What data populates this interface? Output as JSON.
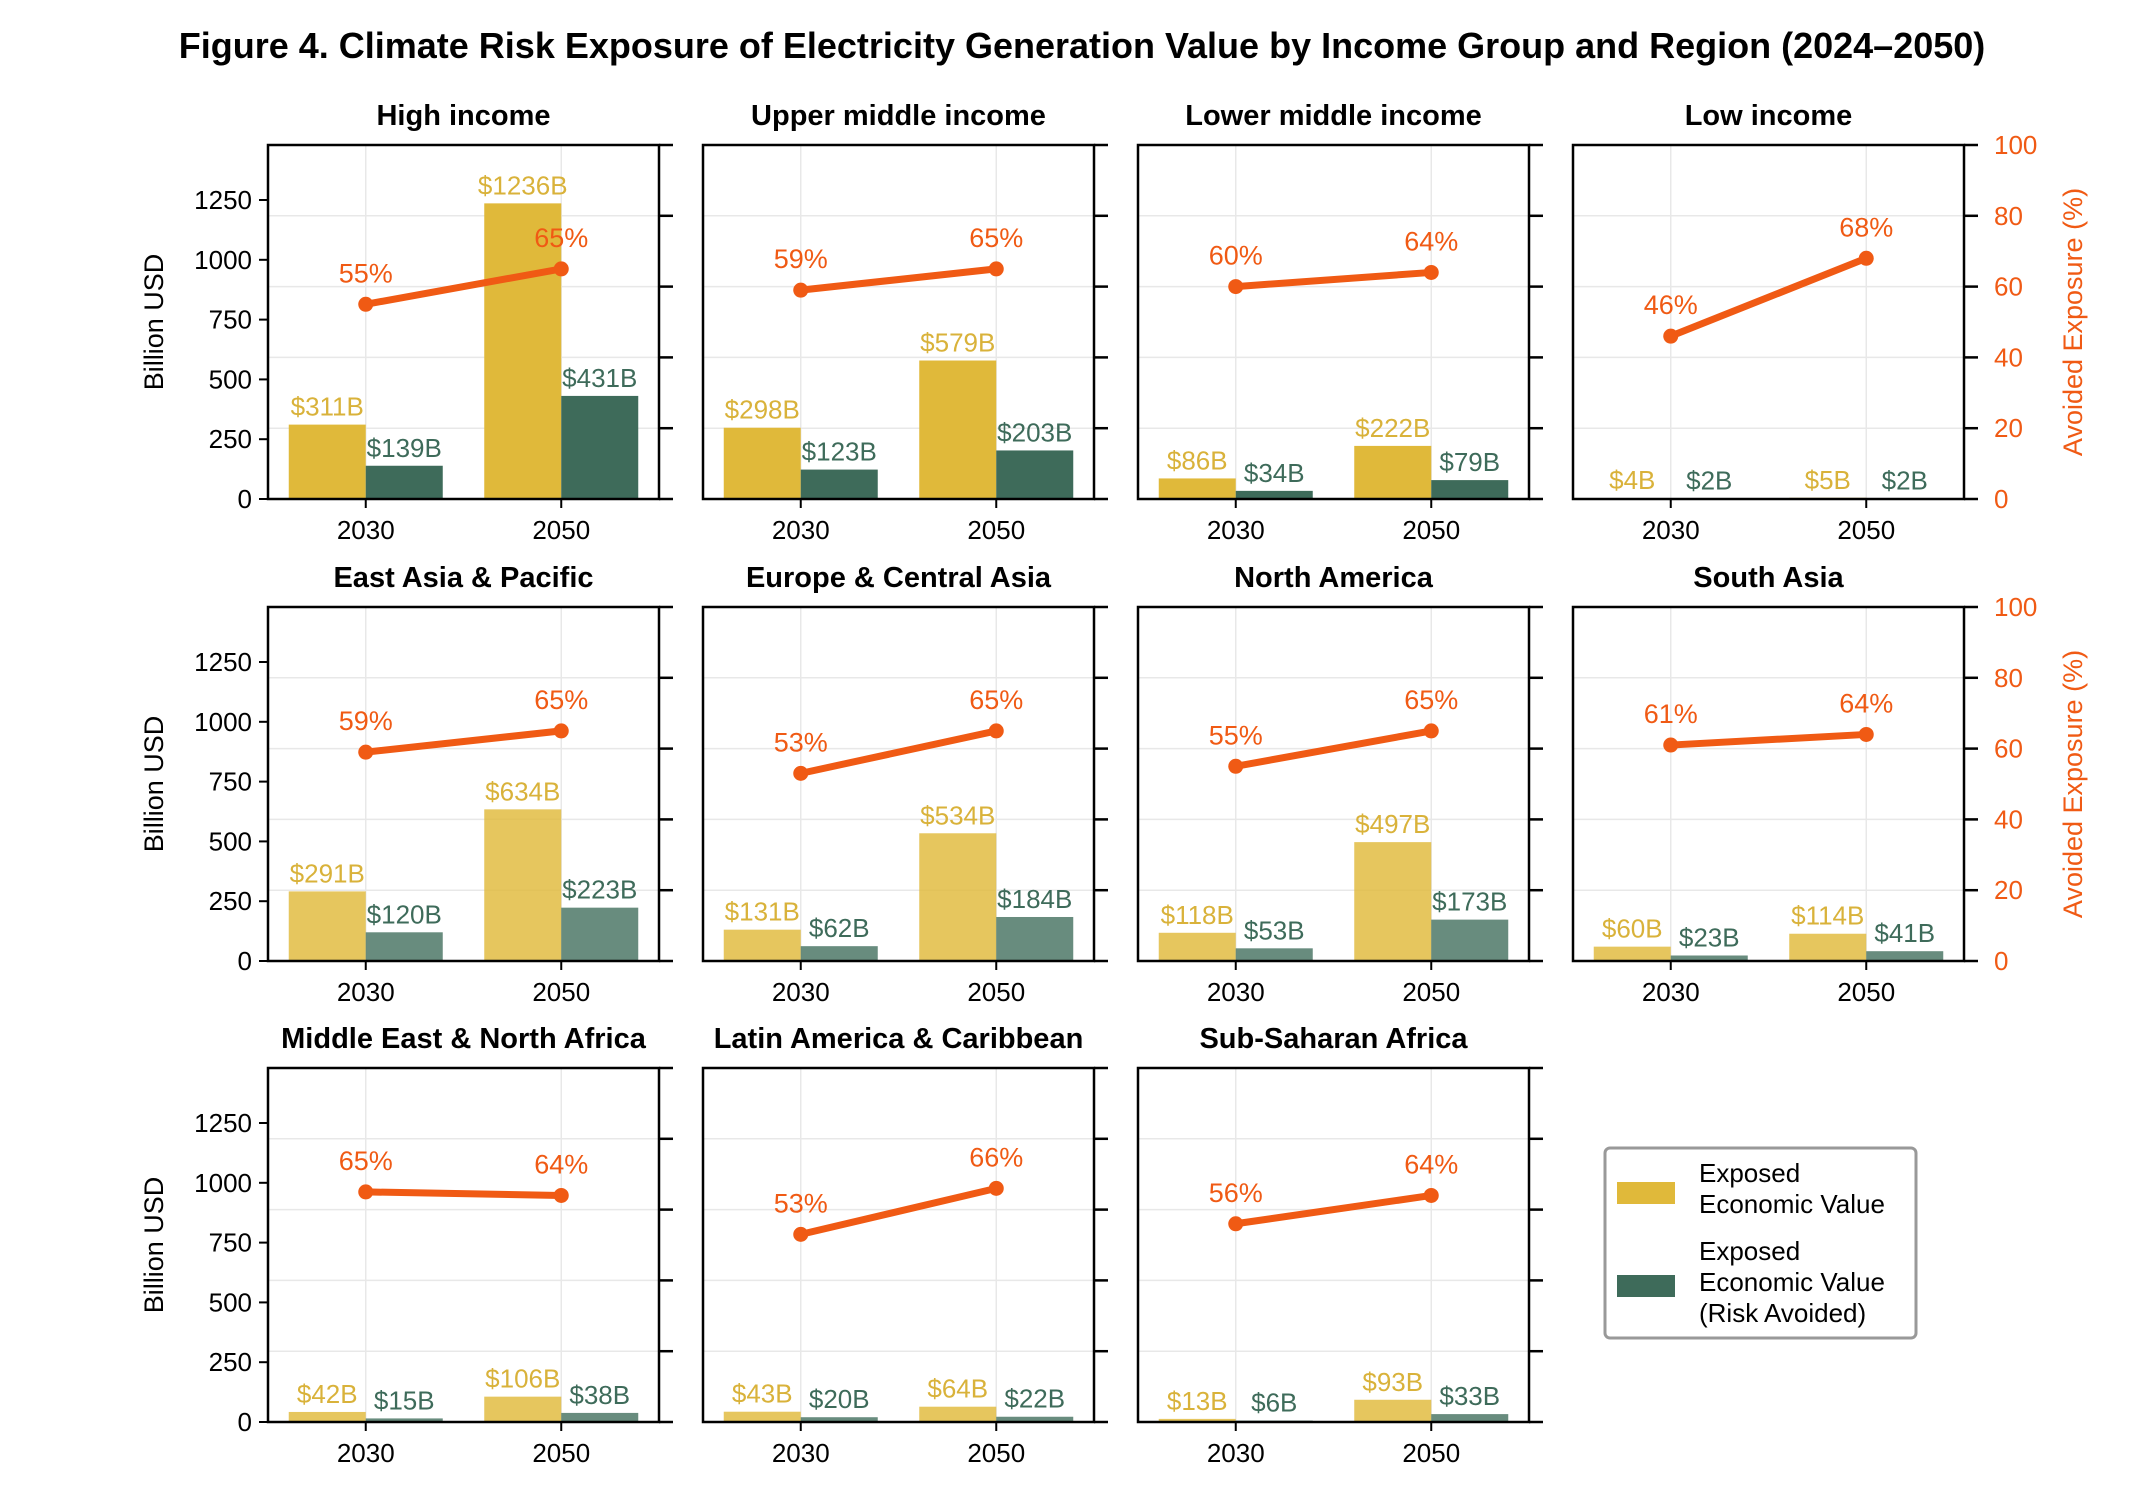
{
  "title": "Figure 4. Climate Risk Exposure of Electricity Generation Value by Income Group and Region (2024–2050)",
  "colors": {
    "exposed": "#E0B93A",
    "avoided": "#3E6B5A",
    "line": "#F05A14",
    "exposed_label": "#D9B23A",
    "avoided_label": "#3E6B5A",
    "axis": "#000000",
    "grid": "#E8E8E8"
  },
  "axis_labels": {
    "left": "Billion USD",
    "right": "Avoided Exposure (%)"
  },
  "legend": {
    "exposed": "Exposed\nEconomic Value",
    "avoided": "Exposed\nEconomic Value\n(Risk Avoided)"
  },
  "chart_data": {
    "type": "bar",
    "years": [
      "2030",
      "2050"
    ],
    "left_ylim": [
      0,
      1480
    ],
    "left_ticks": [
      0,
      250,
      500,
      750,
      1000,
      1250
    ],
    "right_ylim": [
      0,
      100
    ],
    "right_ticks": [
      0,
      20,
      40,
      60,
      80,
      100
    ],
    "panels": [
      {
        "title": "High income",
        "exposed": [
          311,
          1236
        ],
        "avoided": [
          139,
          431
        ],
        "pct": [
          55,
          65
        ],
        "exposed_labels": [
          "$311B",
          "$1236B"
        ],
        "avoided_labels": [
          "$139B",
          "$431B"
        ],
        "pct_labels": [
          "55%",
          "65%"
        ]
      },
      {
        "title": "Upper middle income",
        "exposed": [
          298,
          579
        ],
        "avoided": [
          123,
          203
        ],
        "pct": [
          59,
          65
        ],
        "exposed_labels": [
          "$298B",
          "$579B"
        ],
        "avoided_labels": [
          "$123B",
          "$203B"
        ],
        "pct_labels": [
          "59%",
          "65%"
        ]
      },
      {
        "title": "Lower middle income",
        "exposed": [
          86,
          222
        ],
        "avoided": [
          34,
          79
        ],
        "pct": [
          60,
          64
        ],
        "exposed_labels": [
          "$86B",
          "$222B"
        ],
        "avoided_labels": [
          "$34B",
          "$79B"
        ],
        "pct_labels": [
          "60%",
          "64%"
        ]
      },
      {
        "title": "Low income",
        "exposed": [
          4,
          5
        ],
        "avoided": [
          2,
          2
        ],
        "pct": [
          46,
          68
        ],
        "exposed_labels": [
          "$4B",
          "$5B"
        ],
        "avoided_labels": [
          "$2B",
          "$2B"
        ],
        "pct_labels": [
          "46%",
          "68%"
        ]
      },
      {
        "title": "East Asia & Pacific",
        "exposed": [
          291,
          634
        ],
        "avoided": [
          120,
          223
        ],
        "pct": [
          59,
          65
        ],
        "exposed_labels": [
          "$291B",
          "$634B"
        ],
        "avoided_labels": [
          "$120B",
          "$223B"
        ],
        "pct_labels": [
          "59%",
          "65%"
        ]
      },
      {
        "title": "Europe & Central Asia",
        "exposed": [
          131,
          534
        ],
        "avoided": [
          62,
          184
        ],
        "pct": [
          53,
          65
        ],
        "exposed_labels": [
          "$131B",
          "$534B"
        ],
        "avoided_labels": [
          "$62B",
          "$184B"
        ],
        "pct_labels": [
          "53%",
          "65%"
        ]
      },
      {
        "title": "North America",
        "exposed": [
          118,
          497
        ],
        "avoided": [
          53,
          173
        ],
        "pct": [
          55,
          65
        ],
        "exposed_labels": [
          "$118B",
          "$497B"
        ],
        "avoided_labels": [
          "$53B",
          "$173B"
        ],
        "pct_labels": [
          "55%",
          "65%"
        ]
      },
      {
        "title": "South Asia",
        "exposed": [
          60,
          114
        ],
        "avoided": [
          23,
          41
        ],
        "pct": [
          61,
          64
        ],
        "exposed_labels": [
          "$60B",
          "$114B"
        ],
        "avoided_labels": [
          "$23B",
          "$41B"
        ],
        "pct_labels": [
          "61%",
          "64%"
        ]
      },
      {
        "title": "Middle East & North Africa",
        "exposed": [
          42,
          106
        ],
        "avoided": [
          15,
          38
        ],
        "pct": [
          65,
          64
        ],
        "exposed_labels": [
          "$42B",
          "$106B"
        ],
        "avoided_labels": [
          "$15B",
          "$38B"
        ],
        "pct_labels": [
          "65%",
          "64%"
        ]
      },
      {
        "title": "Latin America & Caribbean",
        "exposed": [
          43,
          64
        ],
        "avoided": [
          20,
          22
        ],
        "pct": [
          53,
          66
        ],
        "exposed_labels": [
          "$43B",
          "$64B"
        ],
        "avoided_labels": [
          "$20B",
          "$22B"
        ],
        "pct_labels": [
          "53%",
          "66%"
        ]
      },
      {
        "title": "Sub-Saharan Africa",
        "exposed": [
          13,
          93
        ],
        "avoided": [
          6,
          33
        ],
        "pct": [
          56,
          64
        ],
        "exposed_labels": [
          "$13B",
          "$93B"
        ],
        "avoided_labels": [
          "$6B",
          "$33B"
        ],
        "pct_labels": [
          "56%",
          "64%"
        ]
      }
    ]
  }
}
